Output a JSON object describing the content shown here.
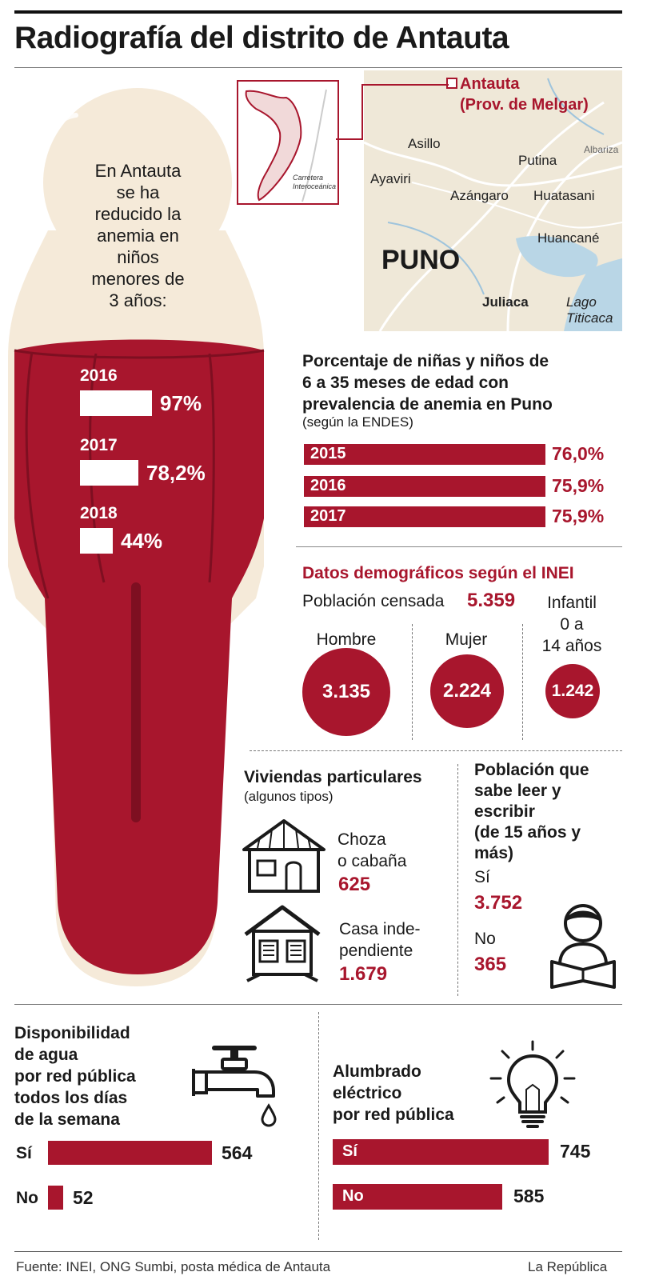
{
  "title": "Radiografía del distrito de Antauta",
  "bottle": {
    "text": [
      "En Antauta",
      "se ha",
      "reducido la",
      "anemia en",
      "niños",
      "menores de",
      "3 años:"
    ],
    "items": [
      {
        "year": "2016",
        "label": "97%",
        "value": 97
      },
      {
        "year": "2017",
        "label": "78,2%",
        "value": 78.2
      },
      {
        "year": "2018",
        "label": "44%",
        "value": 44
      }
    ]
  },
  "map": {
    "antauta": "Antauta",
    "province": "(Prov. de Melgar)",
    "inset_label_1": "Carretera",
    "inset_label_2": "Interoceánica",
    "places": [
      "Asillo",
      "Albariza",
      "Putina",
      "Ayaviri",
      "Azángaro",
      "Huatasani",
      "Huancané",
      "PUNO",
      "Juliaca",
      "Lago",
      "Titicaca"
    ]
  },
  "anemia_puno": {
    "title": [
      "Porcentaje de niñas y niños de",
      "6 a 35 meses de edad con",
      "prevalencia de anemia en Puno"
    ],
    "subtitle": "(según la ENDES)"
  },
  "demo": {
    "title": "Datos demográficos según el INEI",
    "pop_label": "Población censada",
    "pop_value": "5.359",
    "hombre_label": "Hombre",
    "mujer_label": "Mujer",
    "infantil_label": [
      "Infantil",
      "0 a",
      "14 años"
    ],
    "hombre_value": "3.135",
    "mujer_value": "2.224",
    "infantil_value": "1.242"
  },
  "viviendas": {
    "title": "Viviendas particulares",
    "subtitle": "(algunos tipos)",
    "choza_label": [
      "Choza",
      "o cabaña"
    ],
    "choza_value": "625",
    "casa_label": [
      "Casa inde-",
      "pendiente"
    ],
    "casa_value": "1.679"
  },
  "lectura": {
    "title": [
      "Población que",
      "sabe leer y",
      "escribir",
      "(de 15 años y",
      "más)"
    ],
    "si_label": "Sí",
    "si_value": "3.752",
    "no_label": "No",
    "no_value": "365"
  },
  "agua": {
    "title": [
      "Disponibilidad",
      "de agua",
      "por red pública",
      "todos los días",
      "de la semana"
    ]
  },
  "luz": {
    "title": [
      "Alumbrado",
      "eléctrico",
      "por red pública"
    ]
  },
  "footer": {
    "source": "Fuente: INEI, ONG Sumbi, posta médica de Antauta",
    "brand": "La República"
  },
  "colors": {
    "accent": "#a8162d",
    "bottle_bg": "#f5ead9",
    "map_bg": "#efe8d8"
  },
  "chart_data": [
    {
      "type": "bar",
      "title": "Porcentaje de niñas y niños de 6 a 35 meses de edad con prevalencia de anemia en Puno",
      "categories": [
        "2015",
        "2016",
        "2017"
      ],
      "values": [
        76.0,
        75.9,
        75.9
      ],
      "value_labels": [
        "76,0%",
        "75,9%",
        "75,9%"
      ]
    },
    {
      "type": "bar",
      "title": "Disponibilidad de agua por red pública todos los días de la semana",
      "categories": [
        "Sí",
        "No"
      ],
      "values": [
        564,
        52
      ]
    },
    {
      "type": "bar",
      "title": "Alumbrado eléctrico por red pública",
      "categories": [
        "Sí",
        "No"
      ],
      "values": [
        745,
        585
      ]
    }
  ]
}
